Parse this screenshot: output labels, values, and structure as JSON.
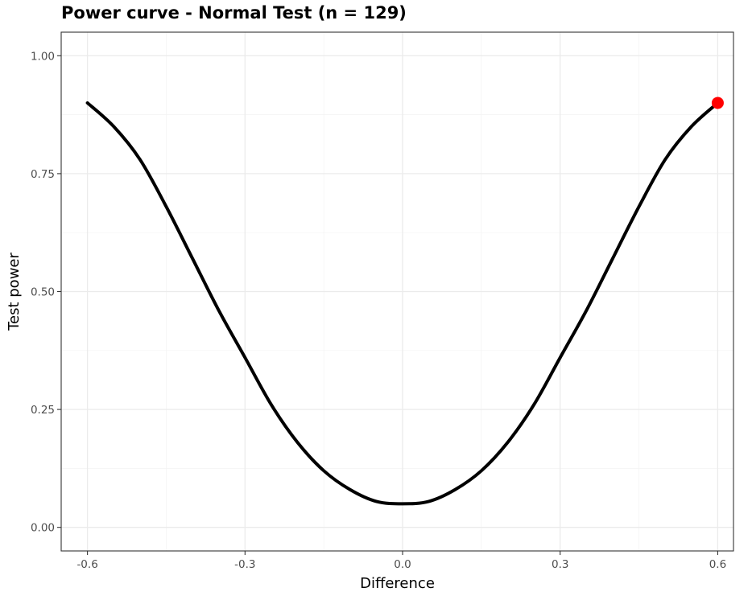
{
  "chart_data": {
    "type": "line",
    "title": "Power curve - Normal Test (n =  129)",
    "xlabel": "Difference",
    "ylabel": "Test power",
    "xlim": [
      -0.65,
      0.63
    ],
    "ylim": [
      -0.05,
      1.05
    ],
    "x_ticks": [
      -0.6,
      -0.3,
      0.0,
      0.3,
      0.6
    ],
    "x_tick_labels": [
      "-0.6",
      "-0.3",
      "0.0",
      "0.3",
      "0.6"
    ],
    "y_ticks": [
      0.0,
      0.25,
      0.5,
      0.75,
      1.0
    ],
    "y_tick_labels": [
      "0.00",
      "0.25",
      "0.50",
      "0.75",
      "1.00"
    ],
    "grid": true,
    "series": [
      {
        "color": "#000000",
        "x": [
          -0.6,
          -0.55,
          -0.5,
          -0.45,
          -0.4,
          -0.35,
          -0.3,
          -0.25,
          -0.2,
          -0.15,
          -0.1,
          -0.05,
          0.0,
          0.05,
          0.1,
          0.15,
          0.2,
          0.25,
          0.3,
          0.35,
          0.4,
          0.45,
          0.5,
          0.55,
          0.6
        ],
        "y": [
          0.9,
          0.85,
          0.78,
          0.68,
          0.57,
          0.46,
          0.36,
          0.26,
          0.18,
          0.12,
          0.08,
          0.055,
          0.05,
          0.055,
          0.08,
          0.12,
          0.18,
          0.26,
          0.36,
          0.46,
          0.57,
          0.68,
          0.78,
          0.85,
          0.9
        ]
      }
    ],
    "highlight_point": {
      "x": 0.6,
      "y": 0.9,
      "color": "#ff0000"
    }
  }
}
